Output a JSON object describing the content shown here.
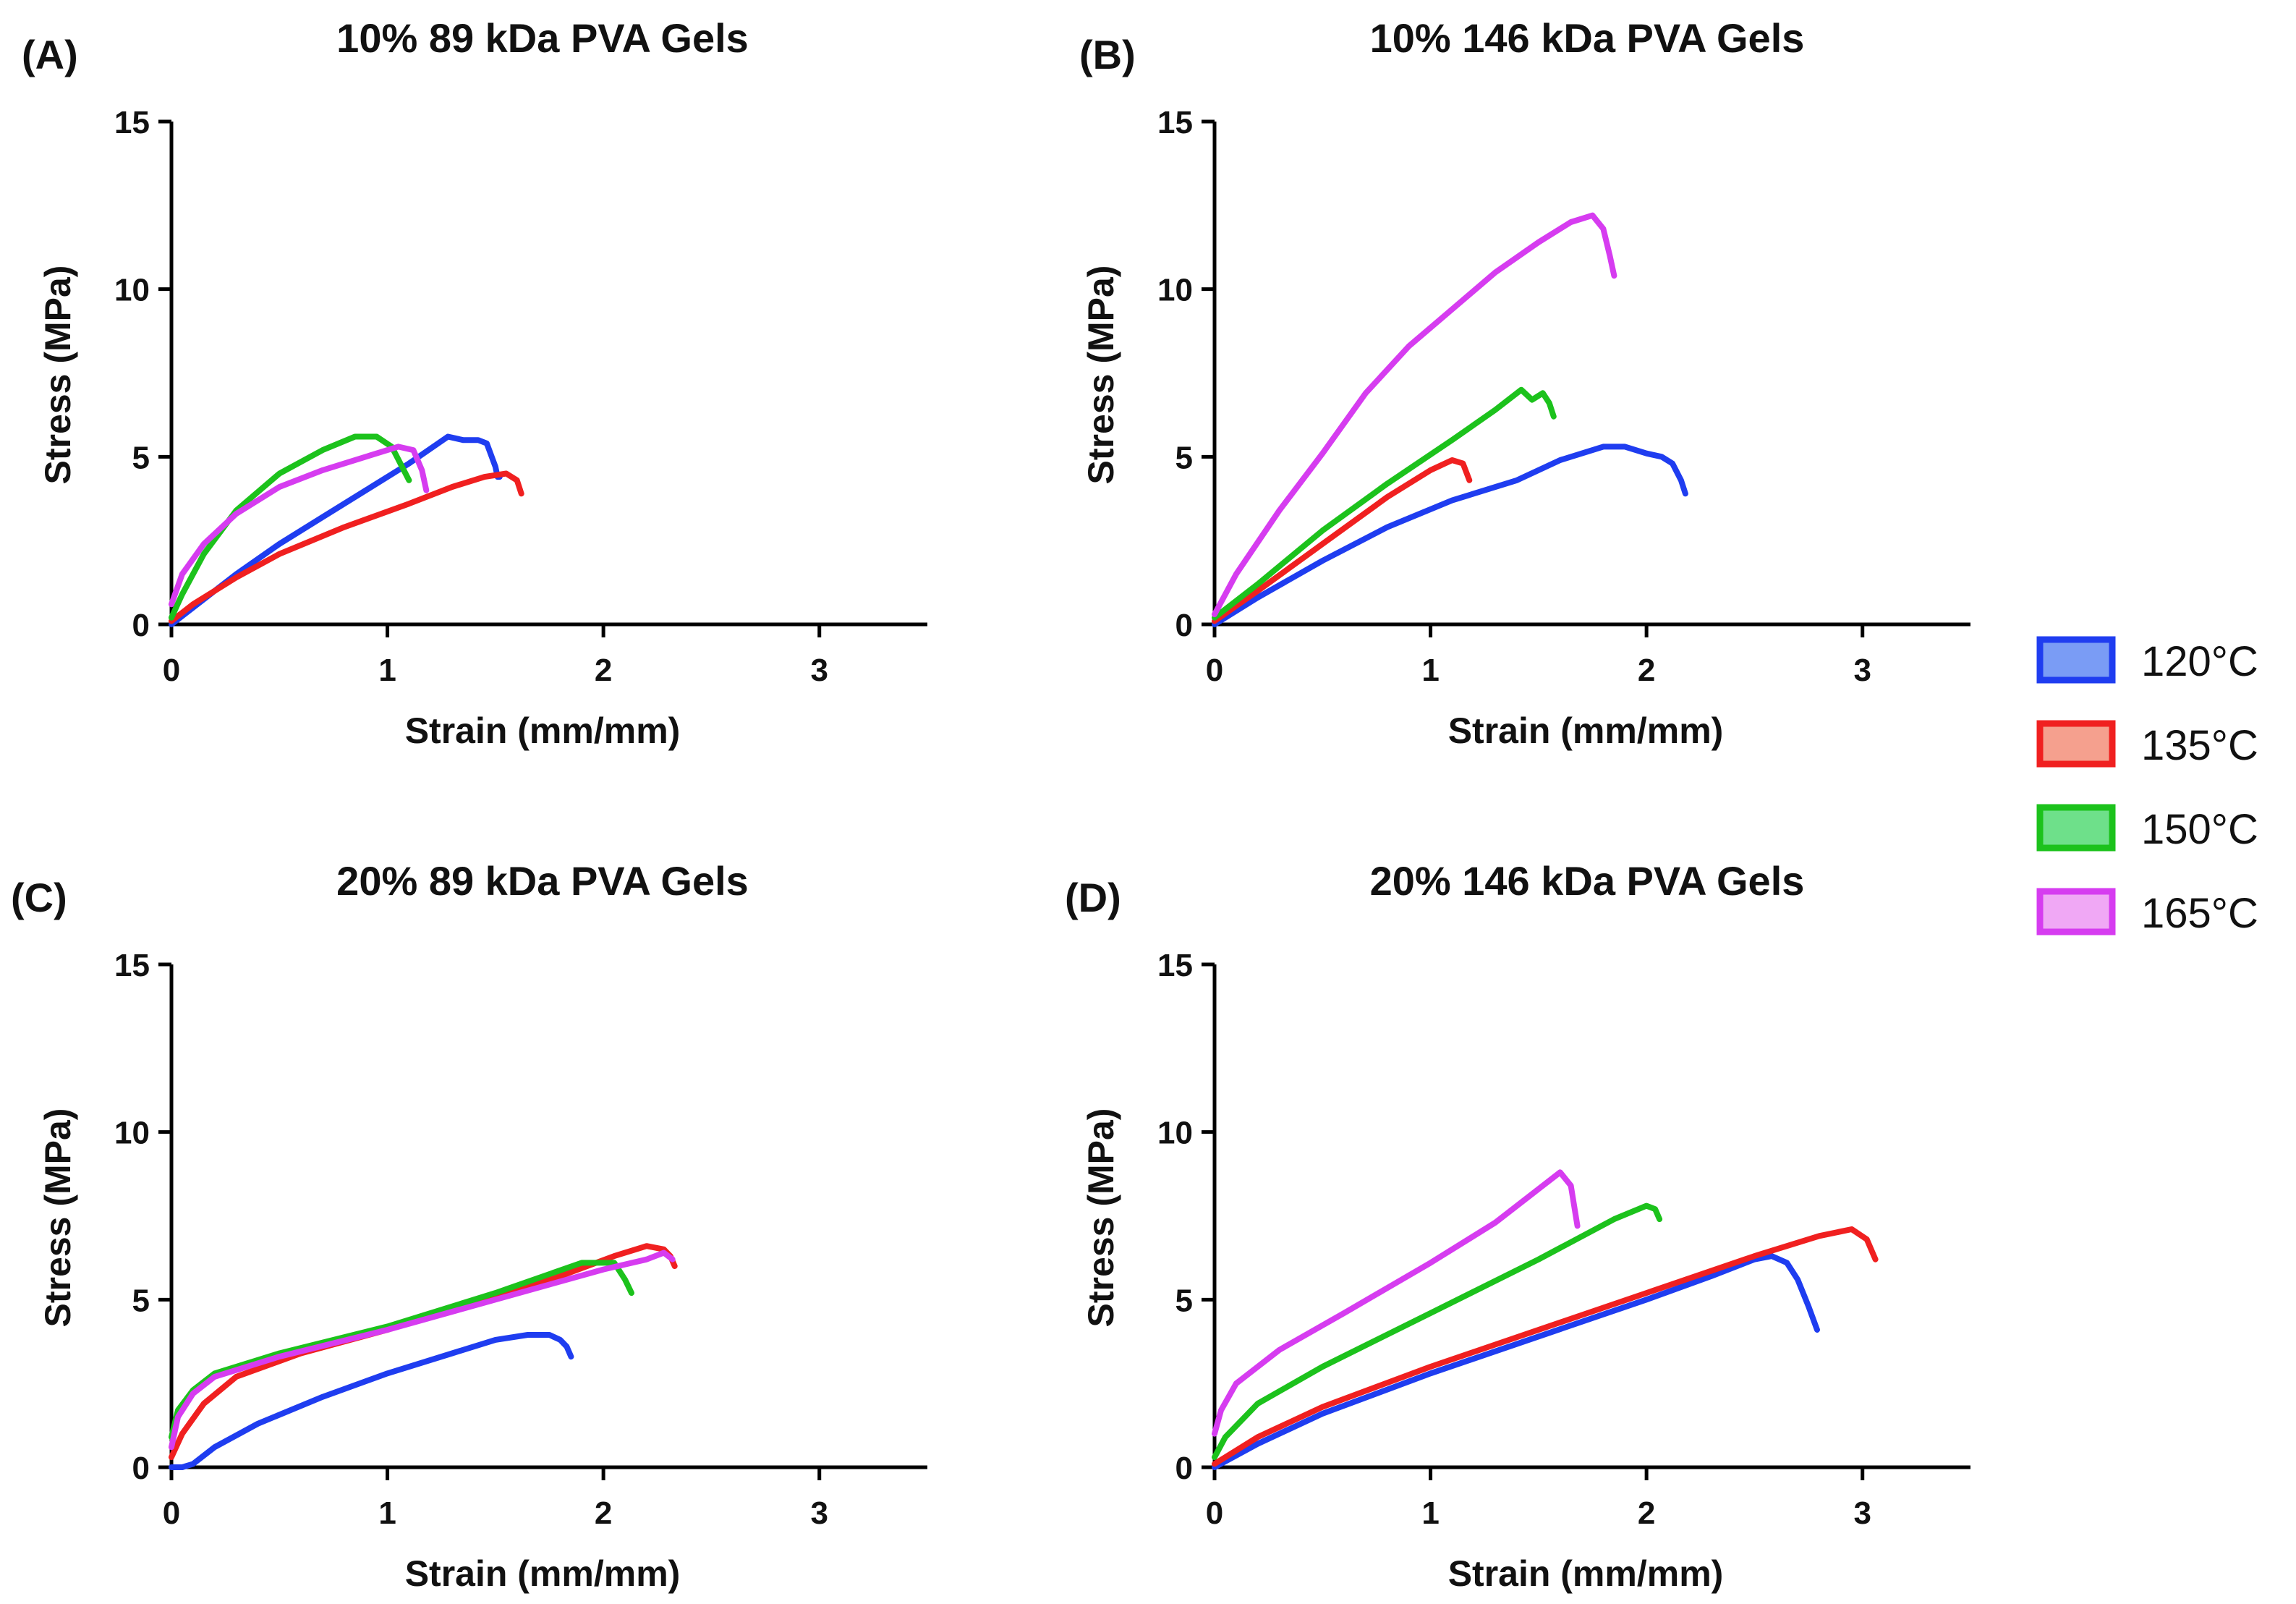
{
  "legend": [
    {
      "label": "120°C",
      "color": "#1f3df0",
      "fill": "#7a9cf5"
    },
    {
      "label": "135°C",
      "color": "#f02020",
      "fill": "#f5a08e"
    },
    {
      "label": "150°C",
      "color": "#1cc21c",
      "fill": "#6ee08a"
    },
    {
      "label": "165°C",
      "color": "#d63cf0",
      "fill": "#f0a8f5"
    }
  ],
  "chart_data": [
    {
      "type": "line",
      "panel_label": "(A)",
      "title": "10% 89 kDa PVA Gels",
      "xlabel": "Strain (mm/mm)",
      "ylabel": "Stress (MPa)",
      "xlim": [
        0,
        3.5
      ],
      "ylim": [
        0,
        15
      ],
      "xticks": [
        "0",
        "1",
        "2",
        "3"
      ],
      "yticks": [
        "0",
        "5",
        "10",
        "15"
      ],
      "series": [
        {
          "name": "120°C",
          "x": [
            0,
            0.1,
            0.3,
            0.5,
            0.7,
            0.9,
            1.1,
            1.28,
            1.35,
            1.42,
            1.46,
            1.5,
            1.51,
            1.52
          ],
          "y": [
            0,
            0.5,
            1.5,
            2.4,
            3.2,
            4.0,
            4.8,
            5.6,
            5.5,
            5.5,
            5.4,
            4.7,
            4.4,
            4.4
          ]
        },
        {
          "name": "135°C",
          "x": [
            0,
            0.1,
            0.3,
            0.5,
            0.8,
            1.1,
            1.3,
            1.45,
            1.55,
            1.6,
            1.62
          ],
          "y": [
            0.1,
            0.6,
            1.4,
            2.1,
            2.9,
            3.6,
            4.1,
            4.4,
            4.5,
            4.3,
            3.9
          ]
        },
        {
          "name": "150°C",
          "x": [
            0,
            0.05,
            0.15,
            0.3,
            0.5,
            0.7,
            0.85,
            0.95,
            1.02,
            1.06,
            1.1
          ],
          "y": [
            0.2,
            0.9,
            2.1,
            3.4,
            4.5,
            5.2,
            5.6,
            5.6,
            5.3,
            4.8,
            4.3
          ]
        },
        {
          "name": "165°C",
          "x": [
            0,
            0.05,
            0.15,
            0.3,
            0.5,
            0.7,
            0.9,
            1.05,
            1.12,
            1.16,
            1.18
          ],
          "y": [
            0.6,
            1.5,
            2.4,
            3.3,
            4.1,
            4.6,
            5.0,
            5.3,
            5.2,
            4.6,
            4.0
          ]
        }
      ]
    },
    {
      "type": "line",
      "panel_label": "(B)",
      "title": "10% 146 kDa PVA Gels",
      "xlabel": "Strain (mm/mm)",
      "ylabel": "Stress (MPa)",
      "xlim": [
        0,
        3.5
      ],
      "ylim": [
        0,
        15
      ],
      "xticks": [
        "0",
        "1",
        "2",
        "3"
      ],
      "yticks": [
        "0",
        "5",
        "10",
        "15"
      ],
      "series": [
        {
          "name": "120°C",
          "x": [
            0,
            0.2,
            0.5,
            0.8,
            1.1,
            1.4,
            1.6,
            1.8,
            1.9,
            2.0,
            2.07,
            2.12,
            2.16,
            2.18
          ],
          "y": [
            0,
            0.8,
            1.9,
            2.9,
            3.7,
            4.3,
            4.9,
            5.3,
            5.3,
            5.1,
            5.0,
            4.8,
            4.3,
            3.9
          ]
        },
        {
          "name": "135°C",
          "x": [
            0,
            0.2,
            0.5,
            0.8,
            1.0,
            1.1,
            1.15,
            1.18
          ],
          "y": [
            0.1,
            1.0,
            2.4,
            3.8,
            4.6,
            4.9,
            4.8,
            4.3
          ]
        },
        {
          "name": "150°C",
          "x": [
            0,
            0.2,
            0.5,
            0.8,
            1.1,
            1.3,
            1.42,
            1.47,
            1.52,
            1.55,
            1.57
          ],
          "y": [
            0.2,
            1.2,
            2.8,
            4.2,
            5.5,
            6.4,
            7.0,
            6.7,
            6.9,
            6.6,
            6.2
          ]
        },
        {
          "name": "165°C",
          "x": [
            0,
            0.1,
            0.3,
            0.5,
            0.7,
            0.9,
            1.1,
            1.3,
            1.5,
            1.65,
            1.75,
            1.8,
            1.83,
            1.85
          ],
          "y": [
            0.3,
            1.5,
            3.4,
            5.1,
            6.9,
            8.3,
            9.4,
            10.5,
            11.4,
            12.0,
            12.2,
            11.8,
            11.0,
            10.4
          ]
        }
      ]
    },
    {
      "type": "line",
      "panel_label": "(C)",
      "title": "20% 89 kDa PVA Gels",
      "xlabel": "Strain (mm/mm)",
      "ylabel": "Stress (MPa)",
      "xlim": [
        0,
        3.5
      ],
      "ylim": [
        0,
        15
      ],
      "xticks": [
        "0",
        "1",
        "2",
        "3"
      ],
      "yticks": [
        "0",
        "5",
        "10",
        "15"
      ],
      "series": [
        {
          "name": "120°C",
          "x": [
            0,
            0.05,
            0.1,
            0.2,
            0.4,
            0.7,
            1.0,
            1.3,
            1.5,
            1.65,
            1.75,
            1.8,
            1.83,
            1.85
          ],
          "y": [
            0,
            0.0,
            0.1,
            0.6,
            1.3,
            2.1,
            2.8,
            3.4,
            3.8,
            3.95,
            3.95,
            3.8,
            3.6,
            3.3
          ]
        },
        {
          "name": "135°C",
          "x": [
            0,
            0.05,
            0.15,
            0.3,
            0.6,
            1.0,
            1.4,
            1.8,
            2.05,
            2.2,
            2.28,
            2.31,
            2.33
          ],
          "y": [
            0.3,
            1.0,
            1.9,
            2.7,
            3.4,
            4.1,
            4.9,
            5.7,
            6.3,
            6.6,
            6.5,
            6.3,
            6.0
          ]
        },
        {
          "name": "150°C",
          "x": [
            0,
            0.03,
            0.1,
            0.2,
            0.5,
            1.0,
            1.5,
            1.9,
            2.05,
            2.1,
            2.13
          ],
          "y": [
            0.9,
            1.7,
            2.3,
            2.8,
            3.4,
            4.2,
            5.2,
            6.1,
            6.1,
            5.6,
            5.2
          ]
        },
        {
          "name": "165°C",
          "x": [
            0,
            0.03,
            0.1,
            0.2,
            0.5,
            1.0,
            1.5,
            2.0,
            2.2,
            2.28,
            2.32
          ],
          "y": [
            0.6,
            1.5,
            2.2,
            2.7,
            3.3,
            4.1,
            5.0,
            5.9,
            6.2,
            6.4,
            6.2
          ]
        }
      ]
    },
    {
      "type": "line",
      "panel_label": "(D)",
      "title": "20% 146 kDa PVA Gels",
      "xlabel": "Strain (mm/mm)",
      "ylabel": "Stress (MPa)",
      "xlim": [
        0,
        3.5
      ],
      "ylim": [
        0,
        15
      ],
      "xticks": [
        "0",
        "1",
        "2",
        "3"
      ],
      "yticks": [
        "0",
        "5",
        "10",
        "15"
      ],
      "series": [
        {
          "name": "120°C",
          "x": [
            0,
            0.2,
            0.5,
            1.0,
            1.5,
            2.0,
            2.3,
            2.5,
            2.58,
            2.65,
            2.7,
            2.75,
            2.79
          ],
          "y": [
            0,
            0.7,
            1.6,
            2.8,
            3.9,
            5.0,
            5.7,
            6.2,
            6.3,
            6.1,
            5.6,
            4.8,
            4.1
          ]
        },
        {
          "name": "135°C",
          "x": [
            0,
            0.2,
            0.5,
            1.0,
            1.5,
            2.0,
            2.5,
            2.8,
            2.95,
            3.02,
            3.06
          ],
          "y": [
            0.1,
            0.9,
            1.8,
            3.0,
            4.1,
            5.2,
            6.3,
            6.9,
            7.1,
            6.8,
            6.2
          ]
        },
        {
          "name": "150°C",
          "x": [
            0,
            0.05,
            0.2,
            0.5,
            1.0,
            1.5,
            1.85,
            2.0,
            2.04,
            2.06
          ],
          "y": [
            0.3,
            0.9,
            1.9,
            3.0,
            4.6,
            6.2,
            7.4,
            7.8,
            7.7,
            7.4
          ]
        },
        {
          "name": "165°C",
          "x": [
            0,
            0.03,
            0.1,
            0.3,
            0.6,
            1.0,
            1.3,
            1.5,
            1.6,
            1.65,
            1.68
          ],
          "y": [
            1.0,
            1.7,
            2.5,
            3.5,
            4.6,
            6.1,
            7.3,
            8.3,
            8.8,
            8.4,
            7.2
          ]
        }
      ]
    }
  ]
}
